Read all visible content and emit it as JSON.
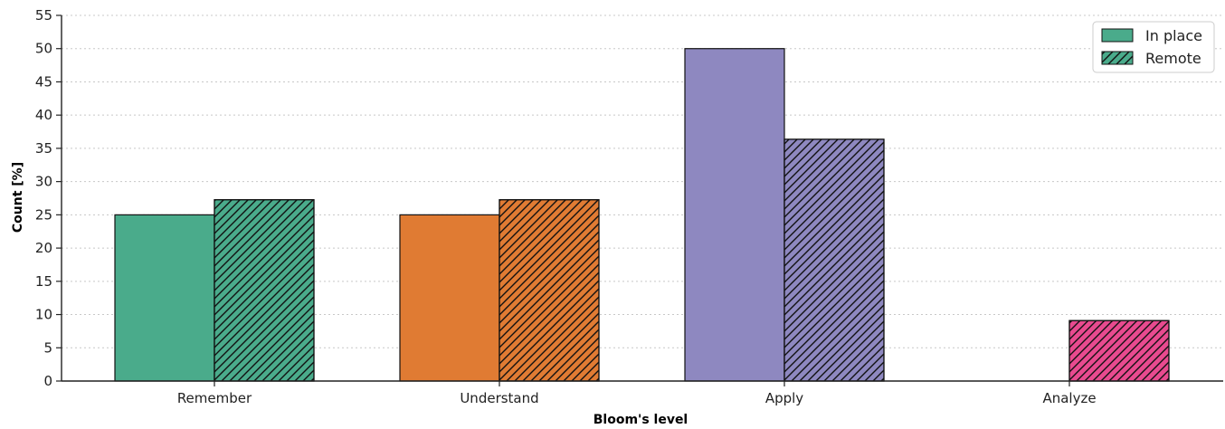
{
  "chart_data": {
    "type": "bar",
    "title": "",
    "xlabel": "Bloom's level",
    "ylabel": "Count [%]",
    "categories": [
      "Remember",
      "Understand",
      "Apply",
      "Analyze"
    ],
    "category_colors": [
      "#4aab8b",
      "#e07b33",
      "#8e88c0",
      "#e84a8f"
    ],
    "series": [
      {
        "name": "In place",
        "pattern": "solid",
        "values": [
          25,
          25,
          50,
          0
        ]
      },
      {
        "name": "Remote",
        "pattern": "hatched",
        "values": [
          27.27,
          27.27,
          36.36,
          9.09
        ]
      }
    ],
    "ylim": [
      0,
      55
    ],
    "yticks": [
      0,
      5,
      10,
      15,
      20,
      25,
      30,
      35,
      40,
      45,
      50,
      55
    ],
    "grid": "y-dotted",
    "legend": "top-right",
    "legend_swatch_color": "#4aab8b"
  }
}
